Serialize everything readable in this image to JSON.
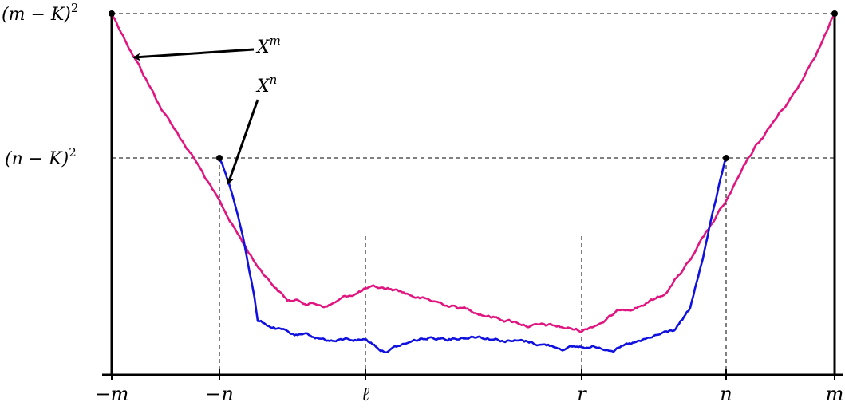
{
  "diagram": {
    "x_ticks": {
      "neg_m": "−m",
      "neg_n": "−n",
      "ell": "ℓ",
      "r": "r",
      "n": "n",
      "m": "m"
    },
    "y_labels": {
      "m_level": {
        "base": "(m − K)",
        "exp": "2"
      },
      "n_level": {
        "base": "(n − K)",
        "exp": "2"
      }
    },
    "curve_labels": {
      "xm": {
        "base": "X",
        "sup": "m"
      },
      "xn": {
        "base": "X",
        "sup": "n"
      }
    },
    "colors": {
      "Xm": "#E0157F",
      "Xn": "#1010E0",
      "axis": "#000000",
      "guide": "#000000"
    }
  }
}
